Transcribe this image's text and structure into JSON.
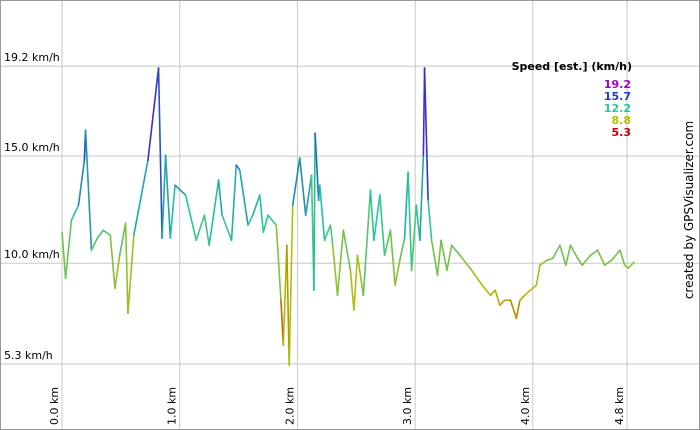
{
  "chart_data": {
    "type": "line",
    "x": [
      0.0,
      0.03,
      0.08,
      0.14,
      0.19,
      0.2,
      0.25,
      0.3,
      0.35,
      0.41,
      0.45,
      0.49,
      0.54,
      0.56,
      0.61,
      0.73,
      0.82,
      0.85,
      0.88,
      0.92,
      0.96,
      1.05,
      1.14,
      1.21,
      1.25,
      1.33,
      1.36,
      1.44,
      1.48,
      1.51,
      1.58,
      1.62,
      1.68,
      1.71,
      1.75,
      1.82,
      1.86,
      1.88,
      1.91,
      1.93,
      1.96,
      2.02,
      2.07,
      2.12,
      2.14,
      2.15,
      2.18,
      2.19,
      2.23,
      2.28,
      2.3,
      2.34,
      2.39,
      2.45,
      2.48,
      2.51,
      2.56,
      2.62,
      2.65,
      2.7,
      2.74,
      2.79,
      2.83,
      2.87,
      2.91,
      2.94,
      2.97,
      3.01,
      3.04,
      3.07,
      3.08,
      3.11,
      3.14,
      3.19,
      3.22,
      3.27,
      3.31,
      3.38,
      3.48,
      3.57,
      3.64,
      3.68,
      3.72,
      3.76,
      3.81,
      3.86,
      3.89,
      3.93,
      3.98,
      4.03,
      4.06,
      4.12,
      4.17,
      4.23,
      4.28,
      4.32,
      4.38,
      4.42,
      4.49,
      4.55,
      4.61,
      4.67,
      4.74,
      4.78,
      4.81,
      4.86
    ],
    "series": [
      {
        "name": "Speed [est.] (km/h)",
        "values": [
          11.45,
          9.3,
          12.01,
          12.71,
          14.81,
          16.21,
          10.61,
          11.17,
          11.54,
          11.31,
          8.83,
          10.37,
          11.87,
          7.66,
          11.31,
          14.81,
          19.11,
          11.17,
          15.05,
          11.17,
          13.64,
          13.18,
          11.07,
          12.24,
          10.84,
          13.88,
          12.24,
          11.07,
          14.58,
          14.35,
          11.78,
          12.24,
          13.18,
          11.45,
          12.24,
          11.78,
          8.27,
          6.17,
          10.84,
          5.23,
          12.71,
          14.91,
          12.24,
          14.11,
          8.74,
          16.07,
          12.94,
          13.64,
          11.07,
          11.78,
          10.84,
          8.5,
          11.54,
          9.67,
          7.8,
          10.37,
          8.5,
          13.41,
          11.07,
          13.18,
          10.37,
          11.54,
          8.97,
          10.14,
          11.17,
          14.25,
          9.67,
          12.71,
          11.07,
          15.05,
          19.11,
          12.94,
          11.07,
          9.44,
          11.07,
          9.67,
          10.84,
          10.37,
          9.67,
          8.97,
          8.5,
          8.74,
          8.04,
          8.27,
          8.27,
          7.43,
          8.27,
          8.5,
          8.74,
          8.97,
          9.91,
          10.14,
          10.23,
          10.84,
          9.91,
          10.84,
          10.23,
          9.91,
          10.37,
          10.61,
          9.91,
          10.14,
          10.61,
          9.91,
          9.77,
          10.05
        ]
      }
    ],
    "color_scale": [
      {
        "value": 19.2,
        "color": "#a000c8"
      },
      {
        "value": 15.7,
        "color": "#1e3ccc"
      },
      {
        "value": 12.2,
        "color": "#22c8a0"
      },
      {
        "value": 8.8,
        "color": "#b4c000"
      },
      {
        "value": 5.3,
        "color": "#c80000"
      }
    ],
    "xlim": [
      -0.527,
      5.42
    ],
    "ylim": [
      5.2,
      22.29
    ],
    "xticks": [
      {
        "value": 0,
        "label": "0.0 km"
      },
      {
        "value": 1,
        "label": "1.0 km"
      },
      {
        "value": 2,
        "label": "2.0 km"
      },
      {
        "value": 3,
        "label": "3.0 km"
      },
      {
        "value": 4,
        "label": "4.0 km"
      },
      {
        "value": 4.8,
        "label": "4.8 km"
      }
    ],
    "yticks": [
      {
        "value": 5.3,
        "label": "5.3 km/h"
      },
      {
        "value": 10,
        "label": "10.0 km/h"
      },
      {
        "value": 15,
        "label": "15.0 km/h"
      },
      {
        "value": 19.2,
        "label": "19.2 km/h"
      }
    ],
    "grid": true,
    "watermark": "created by GPSVisualizer.com"
  }
}
